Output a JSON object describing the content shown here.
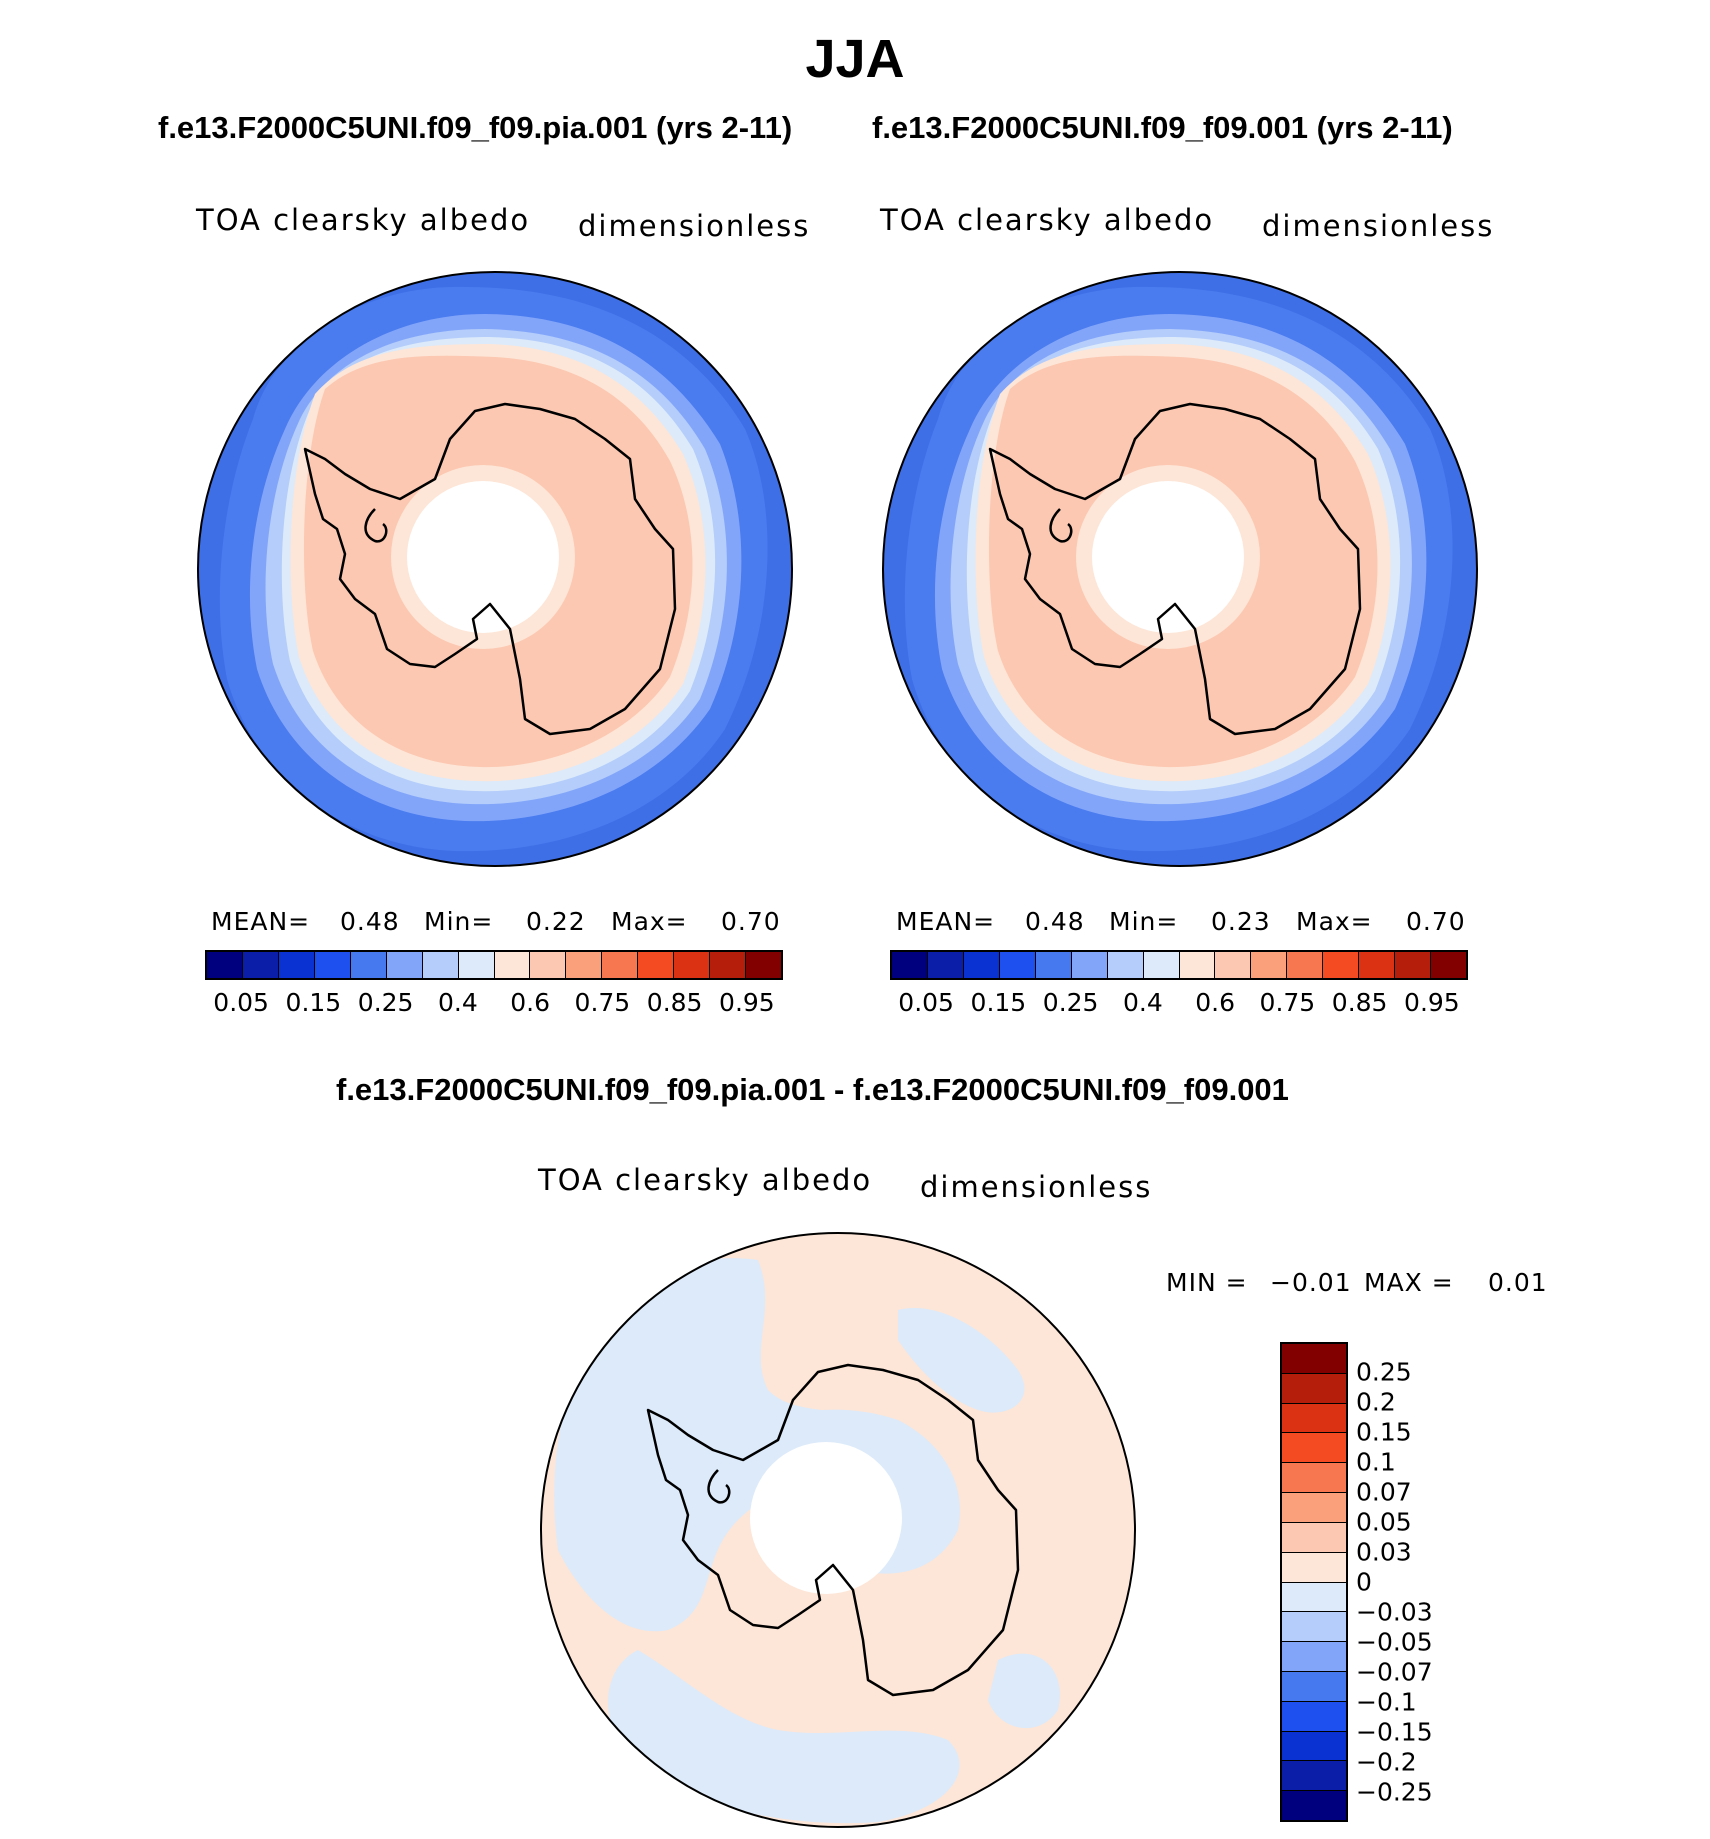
{
  "title": "JJA",
  "panels": [
    {
      "case": "f.e13.F2000C5UNI.f09_f09.pia.001 (yrs 2-11)",
      "variable": "TOA clearsky albedo",
      "units": "dimensionless",
      "stats": {
        "mean_label": "MEAN=",
        "mean": "0.48",
        "min_label": "Min=",
        "min": "0.22",
        "max_label": "Max=",
        "max": "0.70"
      }
    },
    {
      "case": "f.e13.F2000C5UNI.f09_f09.001 (yrs 2-11)",
      "variable": "TOA clearsky albedo",
      "units": "dimensionless",
      "stats": {
        "mean_label": "MEAN=",
        "mean": "0.48",
        "min_label": "Min=",
        "min": "0.23",
        "max_label": "Max=",
        "max": "0.70"
      }
    }
  ],
  "colorbar": {
    "colors": [
      "#00007f",
      "#0a1ea8",
      "#0a32d2",
      "#1e50f0",
      "#4678f0",
      "#82a5fa",
      "#b4cdfa",
      "#dceafa",
      "#fde6d7",
      "#fcc8b2",
      "#faa07a",
      "#f77850",
      "#f54b23",
      "#dc3214",
      "#b41e0a",
      "#820000"
    ],
    "ticks": [
      "0.05",
      "0.15",
      "0.25",
      "0.4",
      "0.6",
      "0.75",
      "0.85",
      "0.95"
    ]
  },
  "difference": {
    "title": "f.e13.F2000C5UNI.f09_f09.pia.001 - f.e13.F2000C5UNI.f09_f09.001",
    "variable": "TOA clearsky albedo",
    "units": "dimensionless",
    "stats": {
      "min_label": "MIN =",
      "min": "−0.01",
      "max_label": "MAX =",
      "max": "0.01"
    },
    "colors": [
      "#820000",
      "#b41e0a",
      "#dc3214",
      "#f54b23",
      "#f77850",
      "#faa07a",
      "#fcc8b2",
      "#fde6d7",
      "#dceafa",
      "#b4cdfa",
      "#82a5fa",
      "#4678f0",
      "#1e50f0",
      "#0a32d2",
      "#0a1ea8",
      "#00007f"
    ],
    "ticks": [
      "0.25",
      "0.2",
      "0.15",
      "0.1",
      "0.07",
      "0.05",
      "0.03",
      "0",
      "−0.03",
      "−0.05",
      "−0.07",
      "−0.1",
      "−0.15",
      "−0.2",
      "−0.25"
    ]
  }
}
